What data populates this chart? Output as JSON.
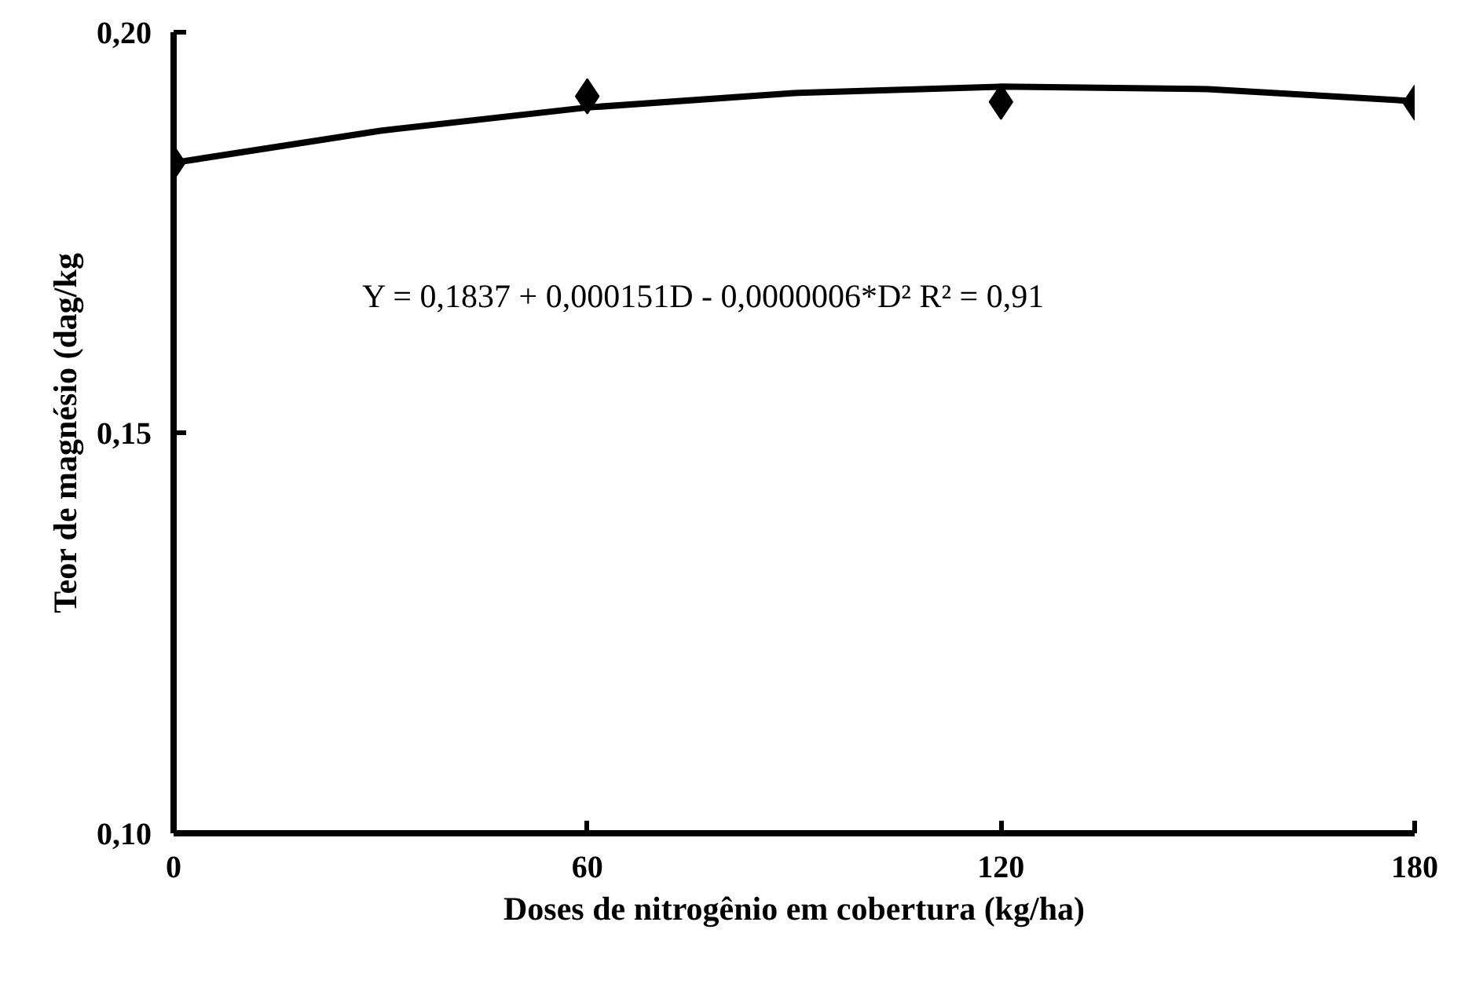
{
  "chart_data": {
    "type": "scatter",
    "xlabel": "Doses de nitrogênio em cobertura (kg/ha)",
    "ylabel": "Teor de magnésio (dag/kg",
    "x": [
      0,
      60,
      120,
      180
    ],
    "series": [
      {
        "color": "#000000",
        "values": [
          0.1837,
          0.192,
          0.1913,
          0.1912
        ],
        "marker": "diamond"
      },
      {
        "type": "line",
        "color": "#000000",
        "x": [
          0,
          30,
          60,
          90,
          120,
          150,
          180
        ],
        "values": [
          0.1837,
          0.1877,
          0.1906,
          0.1924,
          0.1932,
          0.1929,
          0.1914
        ],
        "marker": "none"
      }
    ],
    "xlim": [
      0,
      180
    ],
    "ylim": [
      0.1,
      0.2
    ],
    "xticks": [
      0,
      60,
      120,
      180
    ],
    "yticks": [
      {
        "value": 0.1,
        "label": "0,10"
      },
      {
        "value": 0.15,
        "label": "0,15"
      },
      {
        "value": 0.2,
        "label": "0,20"
      }
    ],
    "annotations": [
      "Y = 0,1837 + 0,000151D - 0,0000006*D² R² = 0,91"
    ],
    "grid": false
  }
}
